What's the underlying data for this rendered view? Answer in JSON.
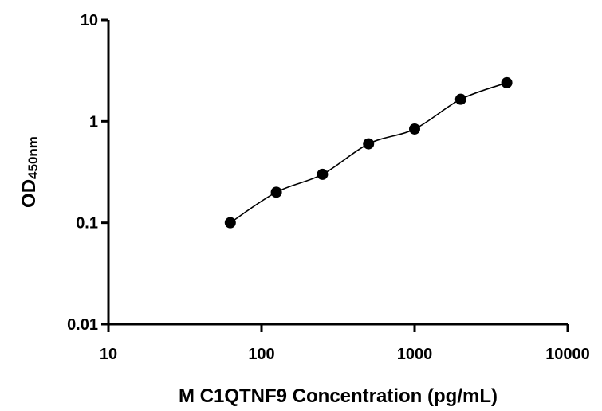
{
  "chart_data": {
    "type": "scatter",
    "title": "",
    "xlabel": "M C1QTNF9 Concentration (pg/mL)",
    "ylabel": {
      "main": "OD",
      "subscript": "450nm"
    },
    "xscale": "log",
    "yscale": "log",
    "xlim": [
      10,
      10000
    ],
    "ylim": [
      0.01,
      10
    ],
    "xticks": [
      10,
      100,
      1000,
      10000
    ],
    "xtick_labels": [
      "10",
      "100",
      "1000",
      "10000"
    ],
    "yticks": [
      0.01,
      0.1,
      1,
      10
    ],
    "ytick_labels": [
      "0.01",
      "0.1",
      "1",
      "10"
    ],
    "grid": false,
    "legend": "none",
    "series": [
      {
        "marker": "circle",
        "color": "#000000",
        "fit_line": true,
        "points": [
          {
            "x": 62.5,
            "y": 0.1
          },
          {
            "x": 125,
            "y": 0.2
          },
          {
            "x": 250,
            "y": 0.3
          },
          {
            "x": 500,
            "y": 0.6
          },
          {
            "x": 1000,
            "y": 0.84
          },
          {
            "x": 2000,
            "y": 1.65
          },
          {
            "x": 4000,
            "y": 2.4
          }
        ]
      }
    ]
  }
}
